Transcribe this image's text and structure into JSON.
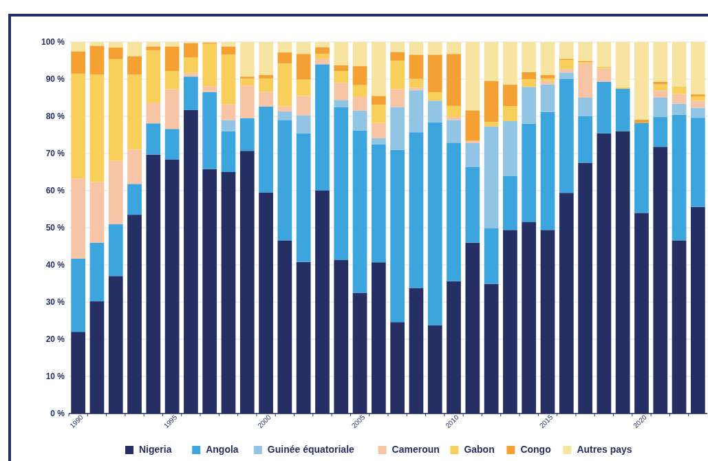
{
  "chart_data": {
    "type": "bar",
    "stacked": true,
    "categories": [
      "1990",
      null,
      null,
      null,
      null,
      "1995",
      null,
      null,
      null,
      null,
      "2000",
      null,
      null,
      null,
      null,
      "2005",
      null,
      null,
      null,
      null,
      "2010",
      null,
      null,
      null,
      null,
      "2015",
      null,
      null,
      null,
      null,
      "2020",
      null,
      null,
      null
    ],
    "ylim": [
      0,
      100
    ],
    "yticks": [
      {
        "value": 0,
        "label": "0 %"
      },
      {
        "value": 10,
        "label": "10 %"
      },
      {
        "value": 20,
        "label": "20 %"
      },
      {
        "value": 30,
        "label": "30 %"
      },
      {
        "value": 40,
        "label": "40 %"
      },
      {
        "value": 50,
        "label": "50 %"
      },
      {
        "value": 60,
        "label": "60 %"
      },
      {
        "value": 70,
        "label": "70 %"
      },
      {
        "value": 80,
        "label": "80 %"
      },
      {
        "value": 90,
        "label": "90 %"
      },
      {
        "value": 100,
        "label": "100 %"
      }
    ],
    "grid": "y",
    "legend": "bottom",
    "series": [
      {
        "name": "Nigeria",
        "color": "#252f63",
        "values": [
          22,
          30.2,
          37,
          53.5,
          69.7,
          68.4,
          81.7,
          65.8,
          65,
          70.7,
          59.5,
          46.6,
          40.8,
          60,
          41.4,
          32.5,
          40.7,
          24.6,
          33.8,
          23.7,
          35.6,
          46,
          34.9,
          49.4,
          51.6,
          49.4,
          59.4,
          67.5,
          75.4,
          76,
          54,
          71.8,
          46.6,
          55.6
        ]
      },
      {
        "name": "Angola",
        "color": "#3ca5de",
        "values": [
          19.7,
          15.8,
          14,
          8.3,
          8.4,
          8.2,
          9,
          20.7,
          11,
          8.8,
          23.1,
          32.4,
          34.6,
          34,
          41.1,
          43.7,
          31.8,
          46.4,
          41.9,
          54.7,
          37.3,
          20.4,
          15,
          14.6,
          26.4,
          31.8,
          30.6,
          12.5,
          13.9,
          11.4,
          24.2,
          8,
          33.8,
          24
        ]
      },
      {
        "name": "Guinée équatoriale",
        "color": "#92c4e4",
        "values": [
          0,
          0,
          0,
          0,
          0,
          0,
          0,
          0,
          3,
          0,
          0,
          2.3,
          4.9,
          0,
          1.9,
          5.3,
          1.6,
          11.5,
          11.3,
          5.8,
          6.1,
          6.4,
          27.4,
          14.7,
          9.9,
          7.4,
          1.8,
          5,
          0,
          0,
          0,
          5.2,
          3,
          2.7
        ]
      },
      {
        "name": "Cameroun",
        "color": "#f8c4a6",
        "values": [
          21.6,
          16.3,
          17,
          9.2,
          5.4,
          10.7,
          1,
          1.5,
          4.2,
          8.8,
          4,
          1.4,
          5.2,
          1.4,
          4.6,
          3.7,
          4.1,
          4.8,
          0.7,
          0,
          0.8,
          0.6,
          0,
          0,
          0,
          0.9,
          1,
          9.2,
          3.6,
          0,
          0,
          1.9,
          2.6,
          1.9
        ]
      },
      {
        "name": "Gabon",
        "color": "#f8cf5a",
        "values": [
          28.2,
          28.9,
          27.4,
          20.2,
          14.3,
          4.9,
          4.1,
          11.5,
          13.4,
          1.9,
          3.6,
          11.5,
          4.4,
          1.4,
          3.2,
          3.2,
          4.9,
          7.7,
          2.4,
          2.3,
          3,
          0,
          1.2,
          4,
          2.1,
          0.7,
          2.3,
          0.4,
          0.5,
          0.4,
          0,
          1.7,
          2,
          1.1
        ]
      },
      {
        "name": "Congo",
        "color": "#f4a032",
        "values": [
          6,
          7.8,
          3.1,
          5,
          1,
          6.6,
          3.9,
          0.3,
          2.2,
          0.5,
          0.9,
          3,
          6.9,
          1.8,
          1.5,
          5.1,
          2.4,
          2.3,
          6.5,
          10.1,
          14,
          8.2,
          11,
          5.8,
          1.9,
          0.9,
          0.4,
          0.3,
          0,
          0,
          0.9,
          0.7,
          0,
          0.6
        ]
      },
      {
        "name": "Autres pays",
        "color": "#f7e4a0",
        "values": [
          2.5,
          1,
          1.5,
          3.8,
          1.2,
          1.2,
          0.3,
          0.2,
          1.2,
          9.3,
          8.9,
          2.8,
          3.2,
          1.4,
          6.3,
          6.5,
          14.5,
          2.7,
          3.4,
          3.4,
          3.2,
          18.4,
          10.5,
          11.5,
          8.1,
          8.9,
          4.5,
          5.1,
          6.6,
          12.2,
          20.9,
          10.7,
          12,
          14.1
        ]
      }
    ]
  }
}
